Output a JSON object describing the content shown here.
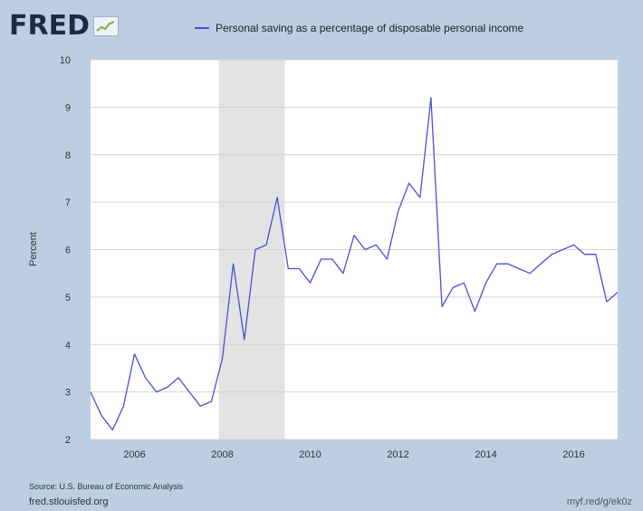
{
  "logo": {
    "text": "FRED",
    "icon": "trend-graph-icon"
  },
  "legend": {
    "label": "Personal saving as a percentage of disposable personal income"
  },
  "footer": {
    "source": "Source: U.S. Bureau of Economic Analysis",
    "site": "fred.stlouisfed.org",
    "shortlink": "myf.red/g/ek0z"
  },
  "colors": {
    "line": "#4a4fd6",
    "background": "#bccee1",
    "plot": "#ffffff",
    "recession": "#e3e3e3",
    "grid": "#d4d4d4"
  },
  "chart_data": {
    "type": "line",
    "ylabel": "Percent",
    "xlabel": "",
    "ylim": [
      2,
      10
    ],
    "xlim": [
      2005.0,
      2017.0
    ],
    "yticks": [
      2,
      3,
      4,
      5,
      6,
      7,
      8,
      9,
      10
    ],
    "xticks": [
      2006,
      2008,
      2010,
      2012,
      2014,
      2016
    ],
    "grid": true,
    "legend_position": "top",
    "recession_shading": [
      {
        "start": 2007.92,
        "end": 2009.42
      }
    ],
    "series": [
      {
        "name": "Personal saving as a percentage of disposable personal income",
        "x": [
          2005.0,
          2005.25,
          2005.5,
          2005.75,
          2006.0,
          2006.25,
          2006.5,
          2006.75,
          2007.0,
          2007.25,
          2007.5,
          2007.75,
          2008.0,
          2008.25,
          2008.5,
          2008.75,
          2009.0,
          2009.25,
          2009.5,
          2009.75,
          2010.0,
          2010.25,
          2010.5,
          2010.75,
          2011.0,
          2011.25,
          2011.5,
          2011.75,
          2012.0,
          2012.25,
          2012.5,
          2012.75,
          2013.0,
          2013.25,
          2013.5,
          2013.75,
          2014.0,
          2014.25,
          2014.5,
          2014.75,
          2015.0,
          2015.25,
          2015.5,
          2015.75,
          2016.0,
          2016.25,
          2016.5,
          2016.75,
          2017.0
        ],
        "values": [
          3.0,
          2.5,
          2.2,
          2.7,
          3.8,
          3.3,
          3.0,
          3.1,
          3.3,
          3.0,
          2.7,
          2.8,
          3.7,
          5.7,
          4.1,
          6.0,
          6.1,
          7.1,
          5.6,
          5.6,
          5.3,
          5.8,
          5.8,
          5.5,
          6.3,
          6.0,
          6.1,
          5.8,
          6.8,
          7.4,
          7.1,
          9.2,
          4.8,
          5.2,
          5.3,
          4.7,
          5.3,
          5.7,
          5.7,
          5.6,
          5.5,
          5.7,
          5.9,
          6.0,
          6.1,
          5.9,
          5.9,
          4.9,
          5.1
        ]
      }
    ]
  }
}
